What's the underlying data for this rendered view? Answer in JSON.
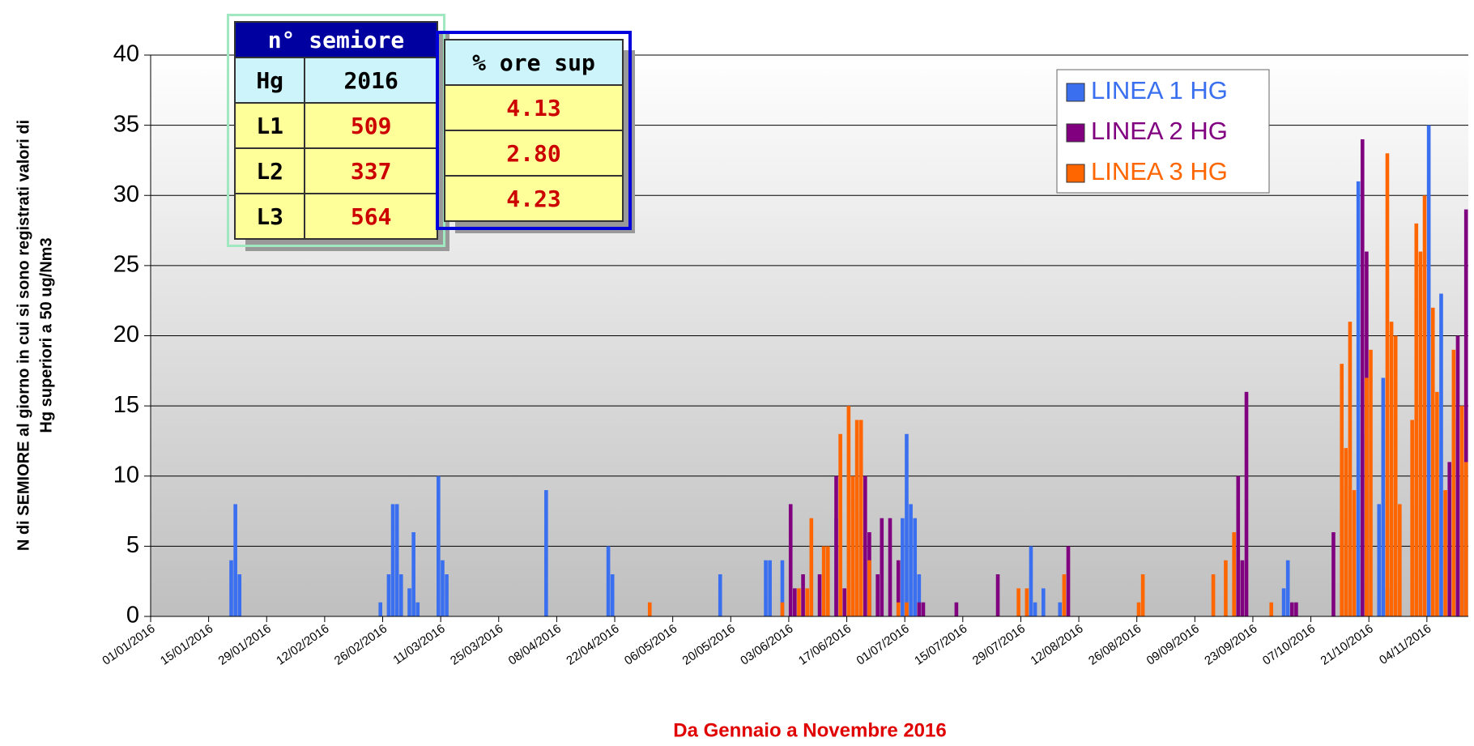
{
  "chart_data": {
    "type": "bar",
    "y_label": [
      "N di SEMIORE al giorno in cui si sono registrati valori di",
      "Hg superiori a 50 ug/Nm3"
    ],
    "x_label": "Da Gennaio a Novembre 2016",
    "x": [
      "2016-01-20",
      "2016-01-21",
      "2016-01-22",
      "2016-02-25",
      "2016-02-27",
      "2016-02-28",
      "2016-02-29",
      "2016-03-01",
      "2016-03-03",
      "2016-03-04",
      "2016-03-05",
      "2016-03-10",
      "2016-03-11",
      "2016-03-12",
      "2016-04-05",
      "2016-04-20",
      "2016-04-21",
      "2016-04-30",
      "2016-05-17",
      "2016-05-28",
      "2016-05-29",
      "2016-06-01",
      "2016-06-03",
      "2016-06-04",
      "2016-06-05",
      "2016-06-06",
      "2016-06-07",
      "2016-06-08",
      "2016-06-10",
      "2016-06-11",
      "2016-06-12",
      "2016-06-14",
      "2016-06-15",
      "2016-06-16",
      "2016-06-17",
      "2016-06-18",
      "2016-06-19",
      "2016-06-20",
      "2016-06-21",
      "2016-06-22",
      "2016-06-24",
      "2016-06-25",
      "2016-06-27",
      "2016-06-29",
      "2016-06-30",
      "2016-07-01",
      "2016-07-02",
      "2016-07-03",
      "2016-07-04",
      "2016-07-05",
      "2016-07-13",
      "2016-07-23",
      "2016-07-28",
      "2016-07-30",
      "2016-07-31",
      "2016-08-01",
      "2016-08-03",
      "2016-08-07",
      "2016-08-08",
      "2016-08-09",
      "2016-08-26",
      "2016-08-27",
      "2016-09-13",
      "2016-09-16",
      "2016-09-18",
      "2016-09-19",
      "2016-09-20",
      "2016-09-21",
      "2016-09-27",
      "2016-09-30",
      "2016-10-01",
      "2016-10-02",
      "2016-10-03",
      "2016-10-12",
      "2016-10-14",
      "2016-10-15",
      "2016-10-16",
      "2016-10-17",
      "2016-10-18",
      "2016-10-19",
      "2016-10-20",
      "2016-10-21",
      "2016-10-23",
      "2016-10-24",
      "2016-10-25",
      "2016-10-26",
      "2016-10-27",
      "2016-10-28",
      "2016-10-31",
      "2016-11-01",
      "2016-11-02",
      "2016-11-03",
      "2016-11-04",
      "2016-11-05",
      "2016-11-06",
      "2016-11-07",
      "2016-11-08",
      "2016-11-09",
      "2016-11-10",
      "2016-11-11",
      "2016-11-12",
      "2016-11-13"
    ],
    "series": [
      {
        "name": "LINEA 1 HG",
        "color": "#3a6ff0",
        "values": [
          4,
          8,
          3,
          1,
          3,
          8,
          8,
          3,
          2,
          6,
          1,
          10,
          4,
          3,
          9,
          5,
          3,
          0,
          3,
          4,
          4,
          4,
          0,
          0,
          0,
          0,
          0,
          0,
          0,
          0,
          0,
          7,
          0,
          0,
          0,
          0,
          0,
          0,
          0,
          0,
          0,
          0,
          0,
          0,
          7,
          13,
          8,
          7,
          3,
          0,
          0,
          0,
          0,
          0,
          5,
          1,
          2,
          1,
          0,
          0,
          0,
          0,
          0,
          0,
          0,
          0,
          0,
          0,
          0,
          2,
          4,
          0,
          0,
          0,
          0,
          0,
          0,
          0,
          31,
          13,
          0,
          0,
          8,
          17,
          2,
          0,
          0,
          0,
          0,
          0,
          0,
          0,
          35,
          0,
          0,
          23,
          0,
          0,
          14,
          0,
          10,
          0
        ]
      },
      {
        "name": "LINEA 2 HG",
        "color": "#800080",
        "values": [
          0,
          0,
          0,
          0,
          0,
          0,
          0,
          0,
          0,
          0,
          0,
          0,
          0,
          0,
          0,
          0,
          0,
          0,
          0,
          0,
          0,
          0,
          8,
          2,
          0,
          3,
          0,
          0,
          3,
          0,
          0,
          10,
          0,
          2,
          0,
          0,
          0,
          0,
          10,
          6,
          3,
          7,
          7,
          4,
          0,
          0,
          0,
          0,
          1,
          1,
          1,
          3,
          0,
          0,
          0,
          0,
          0,
          0,
          0,
          5,
          0,
          0,
          0,
          0,
          0,
          10,
          4,
          16,
          0,
          0,
          0,
          1,
          1,
          6,
          0,
          0,
          0,
          0,
          0,
          34,
          26,
          0,
          0,
          0,
          0,
          0,
          0,
          0,
          0,
          0,
          0,
          0,
          0,
          0,
          0,
          0,
          0,
          11,
          0,
          20,
          0,
          29
        ]
      },
      {
        "name": "LINEA 3 HG",
        "color": "#ff6600",
        "values": [
          0,
          0,
          0,
          0,
          0,
          0,
          0,
          0,
          0,
          0,
          0,
          0,
          0,
          0,
          0,
          0,
          0,
          1,
          0,
          0,
          0,
          1,
          0,
          0,
          2,
          0,
          2,
          7,
          0,
          5,
          5,
          0,
          13,
          0,
          15,
          10,
          14,
          14,
          0,
          4,
          0,
          0,
          0,
          1,
          0,
          1,
          0,
          0,
          0,
          0,
          0,
          0,
          2,
          2,
          0,
          0,
          0,
          0,
          3,
          0,
          1,
          3,
          3,
          4,
          6,
          0,
          0,
          0,
          1,
          0,
          0,
          0,
          0,
          0,
          18,
          12,
          21,
          9,
          0,
          0,
          17,
          19,
          0,
          0,
          33,
          21,
          20,
          8,
          14,
          28,
          26,
          30,
          0,
          22,
          16,
          0,
          9,
          0,
          19,
          0,
          15,
          11
        ]
      }
    ],
    "xlim": [
      "2016-01-01",
      "2016-11-14"
    ],
    "xticks": [
      {
        "value": "2016-01-01",
        "label": "01/01/2016"
      },
      {
        "value": "2016-01-15",
        "label": "15/01/2016"
      },
      {
        "value": "2016-01-29",
        "label": "29/01/2016"
      },
      {
        "value": "2016-02-12",
        "label": "12/02/2016"
      },
      {
        "value": "2016-02-26",
        "label": "26/02/2016"
      },
      {
        "value": "2016-03-11",
        "label": "11/03/2016"
      },
      {
        "value": "2016-03-25",
        "label": "25/03/2016"
      },
      {
        "value": "2016-04-08",
        "label": "08/04/2016"
      },
      {
        "value": "2016-04-22",
        "label": "22/04/2016"
      },
      {
        "value": "2016-05-06",
        "label": "06/05/2016"
      },
      {
        "value": "2016-05-20",
        "label": "20/05/2016"
      },
      {
        "value": "2016-06-03",
        "label": "03/06/2016"
      },
      {
        "value": "2016-06-17",
        "label": "17/06/2016"
      },
      {
        "value": "2016-07-01",
        "label": "01/07/2016"
      },
      {
        "value": "2016-07-15",
        "label": "15/07/2016"
      },
      {
        "value": "2016-07-29",
        "label": "29/07/2016"
      },
      {
        "value": "2016-08-12",
        "label": "12/08/2016"
      },
      {
        "value": "2016-08-26",
        "label": "26/08/2016"
      },
      {
        "value": "2016-09-09",
        "label": "09/09/2016"
      },
      {
        "value": "2016-09-23",
        "label": "23/09/2016"
      },
      {
        "value": "2016-10-07",
        "label": "07/10/2016"
      },
      {
        "value": "2016-10-21",
        "label": "21/10/2016"
      },
      {
        "value": "2016-11-04",
        "label": "04/11/2016"
      }
    ],
    "ylim": [
      0,
      40
    ],
    "yticks": [
      0,
      5,
      10,
      15,
      20,
      25,
      30,
      35,
      40
    ],
    "grid": true,
    "legend": "top-right"
  },
  "tables": [
    {
      "title": "n° semiore",
      "header": [
        "Hg",
        "2016"
      ],
      "rows": [
        [
          "L1",
          "509"
        ],
        [
          "L2",
          "337"
        ],
        [
          "L3",
          "564"
        ]
      ]
    },
    {
      "header": [
        "% ore sup"
      ],
      "rows": [
        [
          "4.13"
        ],
        [
          "2.80"
        ],
        [
          "4.23"
        ]
      ]
    }
  ]
}
